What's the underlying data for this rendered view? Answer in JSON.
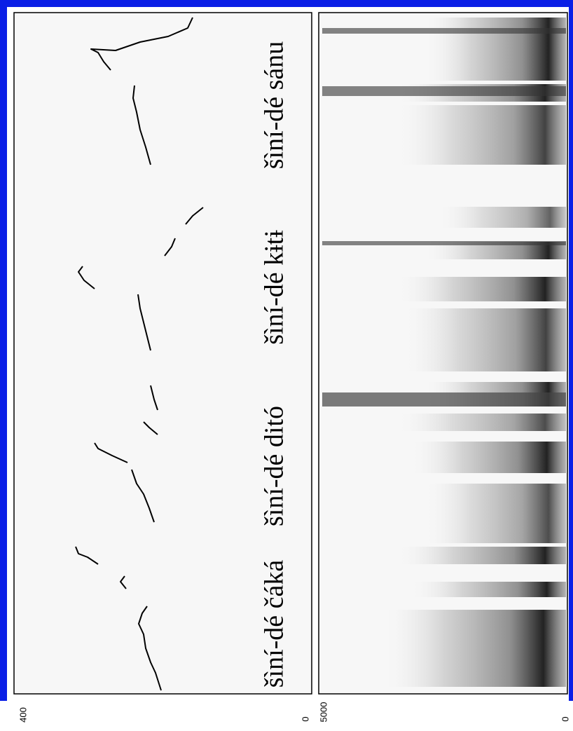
{
  "pitch_panel": {
    "axis_max": 400,
    "axis_min": 0,
    "phrases": [
      "šìní-dé čáká",
      "šìní-dé ditó",
      "šìní-dé kɨtɨ",
      "šìní-dé sánu"
    ]
  },
  "spectrogram_panel": {
    "axis_max": 5000,
    "axis_min": 0
  }
}
